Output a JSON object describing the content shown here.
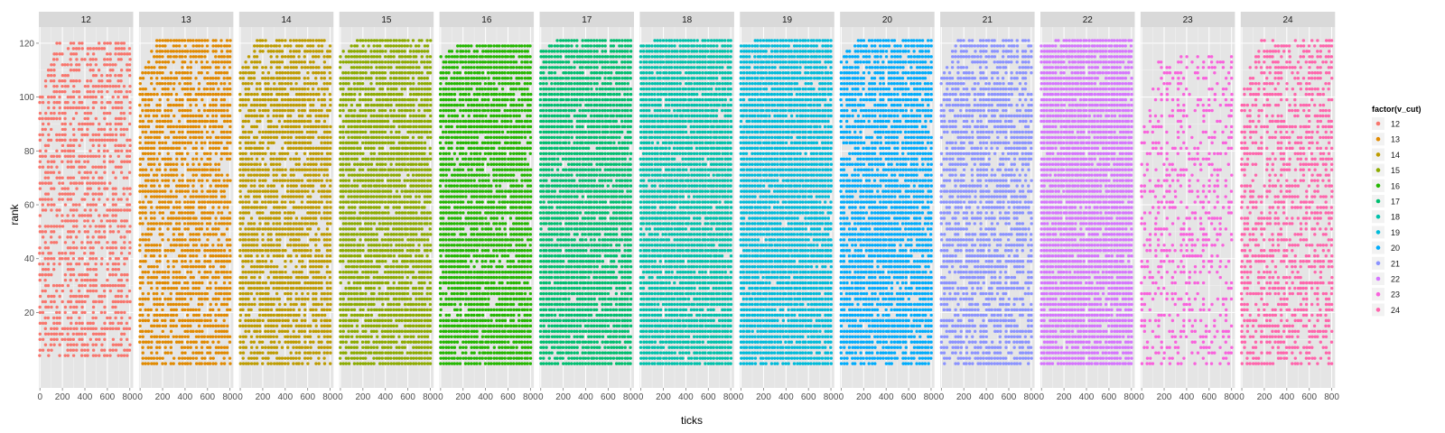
{
  "chart_data": {
    "type": "scatter",
    "xlabel": "ticks",
    "ylabel": "rank",
    "xlim": [
      -10,
      830
    ],
    "ylim": [
      -8,
      126
    ],
    "x_ticks": [
      0,
      200,
      400,
      600,
      800
    ],
    "x_tick_labels": [
      "0",
      "200",
      "400",
      "600",
      "800"
    ],
    "y_ticks": [
      20,
      40,
      60,
      80,
      100,
      120
    ],
    "y_tick_labels": [
      "20",
      "40",
      "60",
      "80",
      "100",
      "120"
    ],
    "grid": true,
    "legend": {
      "title": "factor(v_cut)",
      "placement": "right",
      "entries": [
        "12",
        "13",
        "14",
        "15",
        "16",
        "17",
        "18",
        "19",
        "20",
        "21",
        "22",
        "23",
        "24"
      ]
    },
    "panels": [
      {
        "label": "12",
        "color": "#F8766D",
        "rank_min": 4,
        "rank_max": 120,
        "x_start": 0,
        "density": 0.55
      },
      {
        "label": "13",
        "color": "#E18A00",
        "rank_min": 1,
        "rank_max": 121,
        "x_start": 0,
        "density": 0.7
      },
      {
        "label": "14",
        "color": "#BE9C00",
        "rank_min": 1,
        "rank_max": 121,
        "x_start": 0,
        "density": 0.75
      },
      {
        "label": "15",
        "color": "#8CAB00",
        "rank_min": 1,
        "rank_max": 121,
        "x_start": 0,
        "density": 0.88
      },
      {
        "label": "16",
        "color": "#24B700",
        "rank_min": 1,
        "rank_max": 119,
        "x_start": 0,
        "density": 0.9
      },
      {
        "label": "17",
        "color": "#00BE70",
        "rank_min": 1,
        "rank_max": 121,
        "x_start": 0,
        "density": 0.93
      },
      {
        "label": "18",
        "color": "#00C1AB",
        "rank_min": 1,
        "rank_max": 121,
        "x_start": 0,
        "density": 0.96
      },
      {
        "label": "19",
        "color": "#00BBDA",
        "rank_min": 1,
        "rank_max": 121,
        "x_start": 0,
        "density": 0.95
      },
      {
        "label": "20",
        "color": "#00ACFC",
        "rank_min": 1,
        "rank_max": 121,
        "x_start": 0,
        "density": 0.85
      },
      {
        "label": "21",
        "color": "#8B93FF",
        "rank_min": 1,
        "rank_max": 121,
        "x_start": 0,
        "density": 0.7
      },
      {
        "label": "22",
        "color": "#D575FE",
        "rank_min": 1,
        "rank_max": 121,
        "x_start": 0,
        "density": 0.95
      },
      {
        "label": "23",
        "color": "#F962DD",
        "rank_min": 1,
        "rank_max": 116,
        "x_start": 0,
        "density": 0.3
      },
      {
        "label": "24",
        "color": "#FF65AC",
        "rank_min": 1,
        "rank_max": 121,
        "x_start": 0,
        "density": 0.55
      }
    ]
  }
}
